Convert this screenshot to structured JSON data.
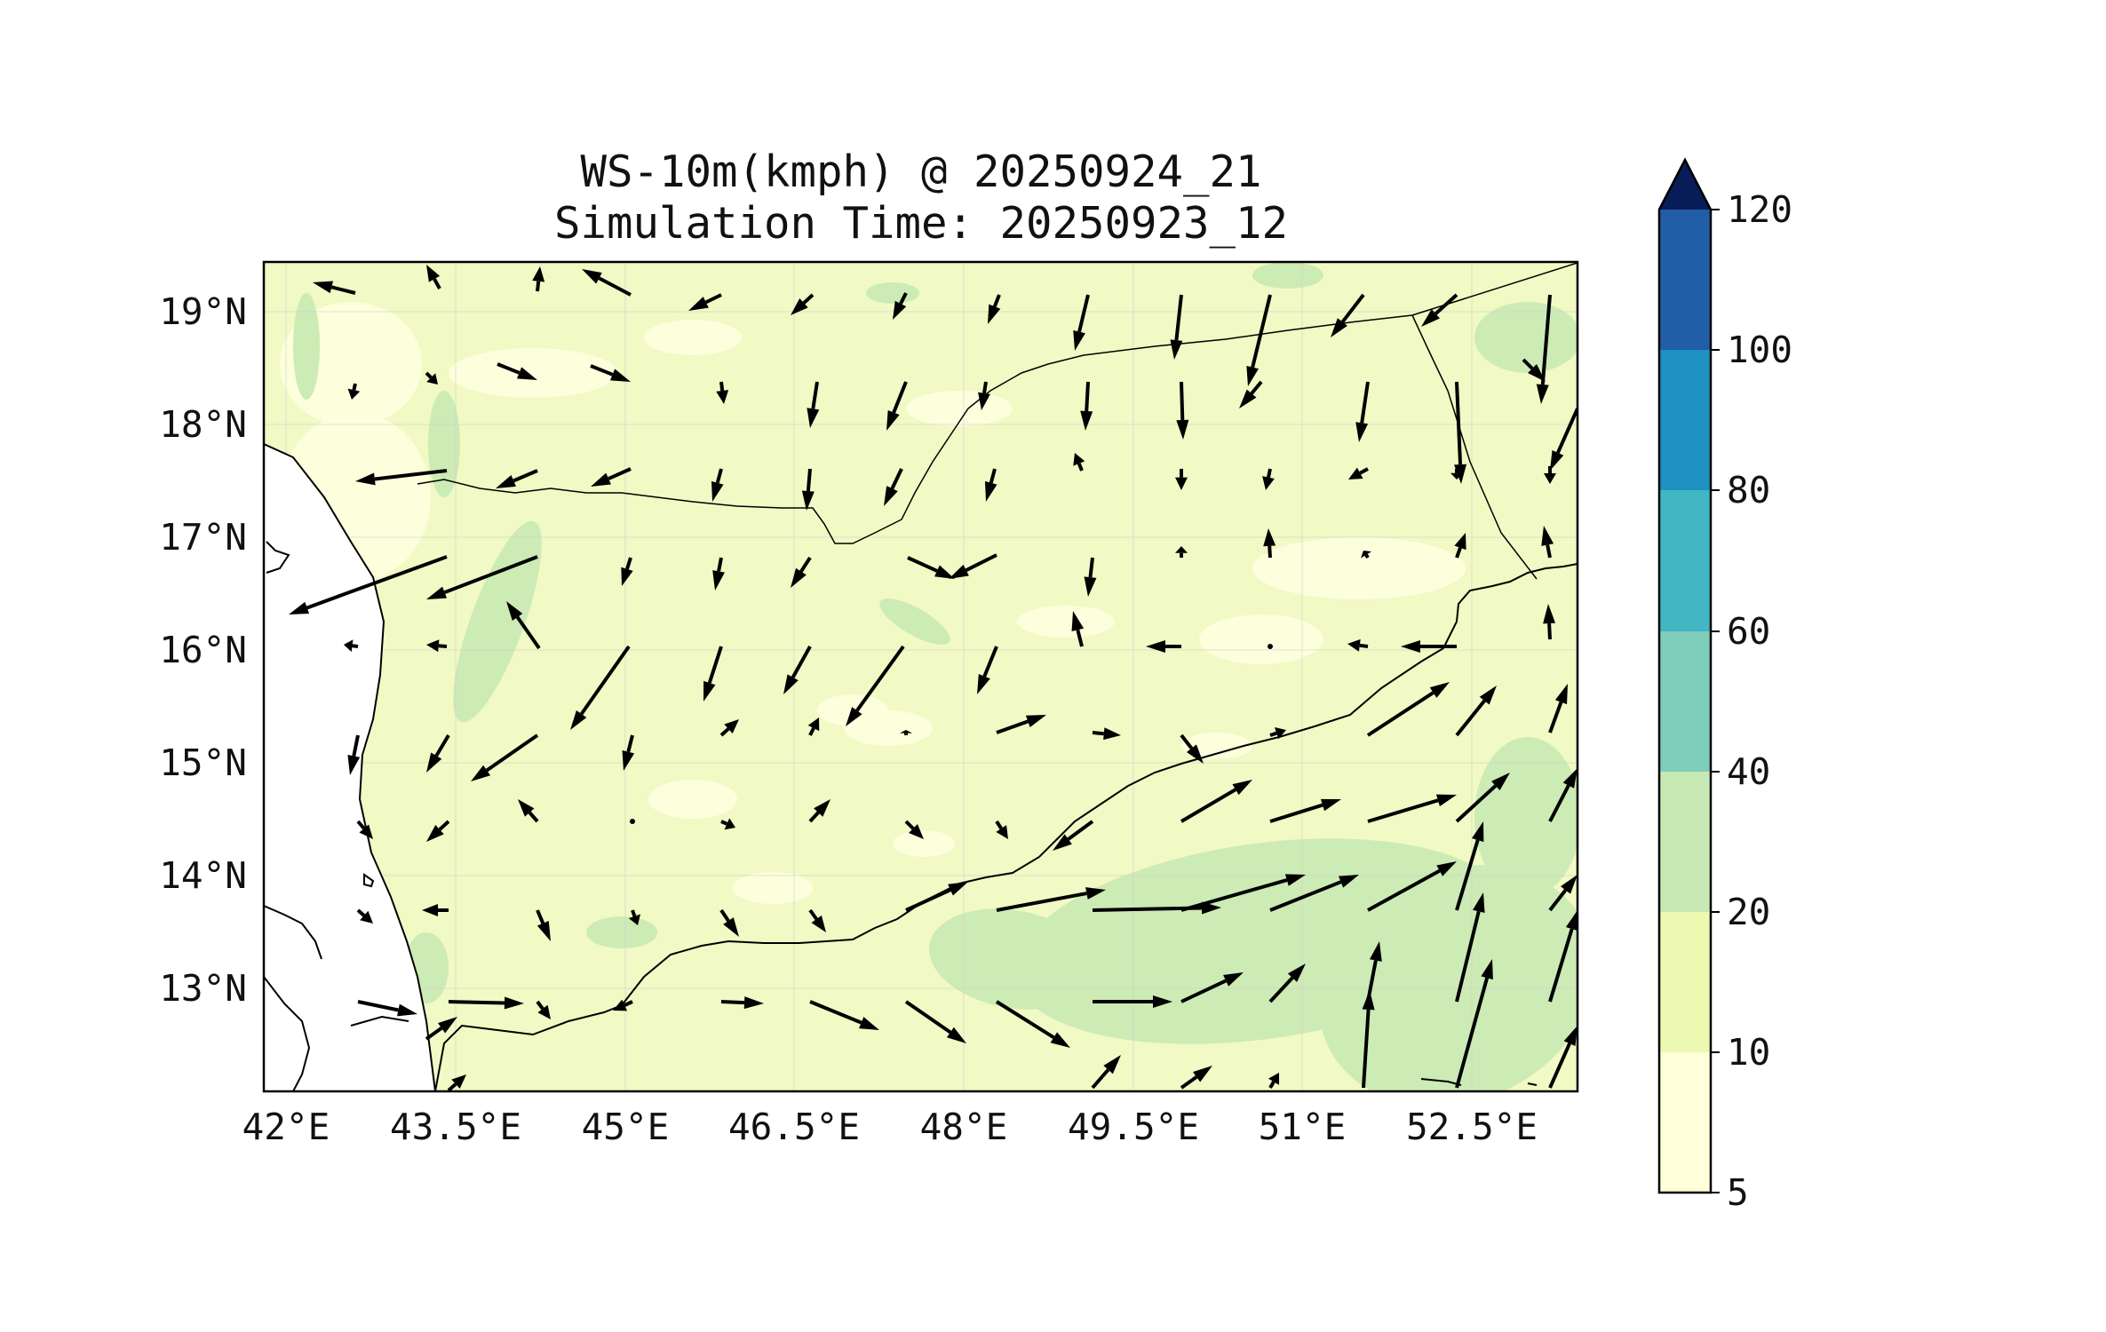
{
  "figure": {
    "title_line1": "WS-10m(kmph) @ 20250924_21",
    "title_line2": "Simulation Time: 20250923_12"
  },
  "map": {
    "x_ticks": [
      "42°E",
      "43.5°E",
      "45°E",
      "46.5°E",
      "48°E",
      "49.5°E",
      "51°E",
      "52.5°E"
    ],
    "y_ticks": [
      "19°N",
      "18°N",
      "17°N",
      "16°N",
      "15°N",
      "14°N",
      "13°N"
    ],
    "lon_range": [
      41.9,
      53.8
    ],
    "lat_range": [
      12.1,
      19.45
    ]
  },
  "colorbar": {
    "labels": [
      "5",
      "10",
      "20",
      "40",
      "60",
      "80",
      "100",
      "120"
    ],
    "colors": [
      "#ffffd9",
      "#edf8b1",
      "#c7e9b4",
      "#7fcdbb",
      "#41b6c4",
      "#1d91c0",
      "#225ea8",
      "#0c2c84"
    ],
    "extend_color": "#081d58"
  }
}
